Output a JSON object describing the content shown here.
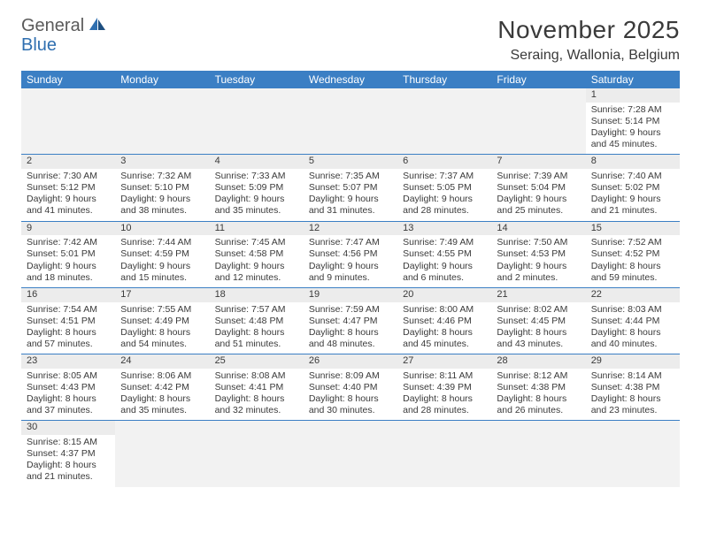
{
  "logo": {
    "text1": "General",
    "text2": "Blue"
  },
  "title": "November 2025",
  "location": "Seraing, Wallonia, Belgium",
  "colors": {
    "header_bg": "#3b7fc4",
    "header_fg": "#ffffff",
    "daynum_bg": "#ececec",
    "border": "#3b7fc4",
    "text": "#3a3a3a",
    "logo_gray": "#5a5a5a",
    "logo_blue": "#2f6fb0"
  },
  "weekdays": [
    "Sunday",
    "Monday",
    "Tuesday",
    "Wednesday",
    "Thursday",
    "Friday",
    "Saturday"
  ],
  "weeks": [
    [
      null,
      null,
      null,
      null,
      null,
      null,
      {
        "n": "1",
        "sr": "Sunrise: 7:28 AM",
        "ss": "Sunset: 5:14 PM",
        "dl": "Daylight: 9 hours and 45 minutes."
      }
    ],
    [
      {
        "n": "2",
        "sr": "Sunrise: 7:30 AM",
        "ss": "Sunset: 5:12 PM",
        "dl": "Daylight: 9 hours and 41 minutes."
      },
      {
        "n": "3",
        "sr": "Sunrise: 7:32 AM",
        "ss": "Sunset: 5:10 PM",
        "dl": "Daylight: 9 hours and 38 minutes."
      },
      {
        "n": "4",
        "sr": "Sunrise: 7:33 AM",
        "ss": "Sunset: 5:09 PM",
        "dl": "Daylight: 9 hours and 35 minutes."
      },
      {
        "n": "5",
        "sr": "Sunrise: 7:35 AM",
        "ss": "Sunset: 5:07 PM",
        "dl": "Daylight: 9 hours and 31 minutes."
      },
      {
        "n": "6",
        "sr": "Sunrise: 7:37 AM",
        "ss": "Sunset: 5:05 PM",
        "dl": "Daylight: 9 hours and 28 minutes."
      },
      {
        "n": "7",
        "sr": "Sunrise: 7:39 AM",
        "ss": "Sunset: 5:04 PM",
        "dl": "Daylight: 9 hours and 25 minutes."
      },
      {
        "n": "8",
        "sr": "Sunrise: 7:40 AM",
        "ss": "Sunset: 5:02 PM",
        "dl": "Daylight: 9 hours and 21 minutes."
      }
    ],
    [
      {
        "n": "9",
        "sr": "Sunrise: 7:42 AM",
        "ss": "Sunset: 5:01 PM",
        "dl": "Daylight: 9 hours and 18 minutes."
      },
      {
        "n": "10",
        "sr": "Sunrise: 7:44 AM",
        "ss": "Sunset: 4:59 PM",
        "dl": "Daylight: 9 hours and 15 minutes."
      },
      {
        "n": "11",
        "sr": "Sunrise: 7:45 AM",
        "ss": "Sunset: 4:58 PM",
        "dl": "Daylight: 9 hours and 12 minutes."
      },
      {
        "n": "12",
        "sr": "Sunrise: 7:47 AM",
        "ss": "Sunset: 4:56 PM",
        "dl": "Daylight: 9 hours and 9 minutes."
      },
      {
        "n": "13",
        "sr": "Sunrise: 7:49 AM",
        "ss": "Sunset: 4:55 PM",
        "dl": "Daylight: 9 hours and 6 minutes."
      },
      {
        "n": "14",
        "sr": "Sunrise: 7:50 AM",
        "ss": "Sunset: 4:53 PM",
        "dl": "Daylight: 9 hours and 2 minutes."
      },
      {
        "n": "15",
        "sr": "Sunrise: 7:52 AM",
        "ss": "Sunset: 4:52 PM",
        "dl": "Daylight: 8 hours and 59 minutes."
      }
    ],
    [
      {
        "n": "16",
        "sr": "Sunrise: 7:54 AM",
        "ss": "Sunset: 4:51 PM",
        "dl": "Daylight: 8 hours and 57 minutes."
      },
      {
        "n": "17",
        "sr": "Sunrise: 7:55 AM",
        "ss": "Sunset: 4:49 PM",
        "dl": "Daylight: 8 hours and 54 minutes."
      },
      {
        "n": "18",
        "sr": "Sunrise: 7:57 AM",
        "ss": "Sunset: 4:48 PM",
        "dl": "Daylight: 8 hours and 51 minutes."
      },
      {
        "n": "19",
        "sr": "Sunrise: 7:59 AM",
        "ss": "Sunset: 4:47 PM",
        "dl": "Daylight: 8 hours and 48 minutes."
      },
      {
        "n": "20",
        "sr": "Sunrise: 8:00 AM",
        "ss": "Sunset: 4:46 PM",
        "dl": "Daylight: 8 hours and 45 minutes."
      },
      {
        "n": "21",
        "sr": "Sunrise: 8:02 AM",
        "ss": "Sunset: 4:45 PM",
        "dl": "Daylight: 8 hours and 43 minutes."
      },
      {
        "n": "22",
        "sr": "Sunrise: 8:03 AM",
        "ss": "Sunset: 4:44 PM",
        "dl": "Daylight: 8 hours and 40 minutes."
      }
    ],
    [
      {
        "n": "23",
        "sr": "Sunrise: 8:05 AM",
        "ss": "Sunset: 4:43 PM",
        "dl": "Daylight: 8 hours and 37 minutes."
      },
      {
        "n": "24",
        "sr": "Sunrise: 8:06 AM",
        "ss": "Sunset: 4:42 PM",
        "dl": "Daylight: 8 hours and 35 minutes."
      },
      {
        "n": "25",
        "sr": "Sunrise: 8:08 AM",
        "ss": "Sunset: 4:41 PM",
        "dl": "Daylight: 8 hours and 32 minutes."
      },
      {
        "n": "26",
        "sr": "Sunrise: 8:09 AM",
        "ss": "Sunset: 4:40 PM",
        "dl": "Daylight: 8 hours and 30 minutes."
      },
      {
        "n": "27",
        "sr": "Sunrise: 8:11 AM",
        "ss": "Sunset: 4:39 PM",
        "dl": "Daylight: 8 hours and 28 minutes."
      },
      {
        "n": "28",
        "sr": "Sunrise: 8:12 AM",
        "ss": "Sunset: 4:38 PM",
        "dl": "Daylight: 8 hours and 26 minutes."
      },
      {
        "n": "29",
        "sr": "Sunrise: 8:14 AM",
        "ss": "Sunset: 4:38 PM",
        "dl": "Daylight: 8 hours and 23 minutes."
      }
    ],
    [
      {
        "n": "30",
        "sr": "Sunrise: 8:15 AM",
        "ss": "Sunset: 4:37 PM",
        "dl": "Daylight: 8 hours and 21 minutes."
      },
      null,
      null,
      null,
      null,
      null,
      null
    ]
  ]
}
